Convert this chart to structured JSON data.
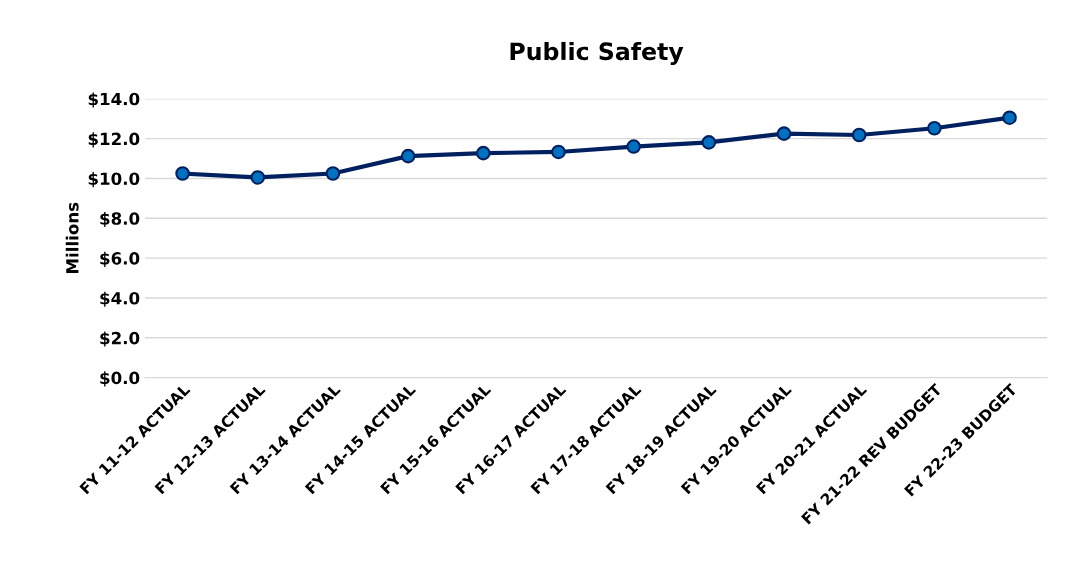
{
  "chart_data": {
    "type": "line",
    "title": "Public Safety",
    "ylabel": "Millions",
    "categories": [
      "FY 11-12 ACTUAL",
      "FY 12-13 ACTUAL",
      "FY 13-14 ACTUAL",
      "FY 14-15 ACTUAL",
      "FY 15-16 ACTUAL",
      "FY 16-17 ACTUAL",
      "FY 17-18 ACTUAL",
      "FY 18-19 ACTUAL",
      "FY 19-20 ACTUAL",
      "FY 20-21 ACTUAL",
      "FY 21-22 REV BUDGET",
      "FY 22-23 BUDGET"
    ],
    "series": [
      {
        "color": "#0070c0",
        "values": [
          10.25,
          10.05,
          10.25,
          11.12,
          11.27,
          11.33,
          11.6,
          11.81,
          12.25,
          12.18,
          12.52,
          13.05
        ]
      }
    ],
    "ylim": [
      0,
      14
    ],
    "yticks": [
      {
        "value": 0,
        "label": "$0.0"
      },
      {
        "value": 2,
        "label": "$2.0"
      },
      {
        "value": 4,
        "label": "$4.0"
      },
      {
        "value": 6,
        "label": "$6.0"
      },
      {
        "value": 8,
        "label": "$8.0"
      },
      {
        "value": 10,
        "label": "$10.0"
      },
      {
        "value": 12,
        "label": "$12.0"
      },
      {
        "value": 14,
        "label": "$14.0"
      }
    ],
    "grid": "y",
    "legend": false,
    "marker": "circle",
    "line_style": "solid"
  }
}
